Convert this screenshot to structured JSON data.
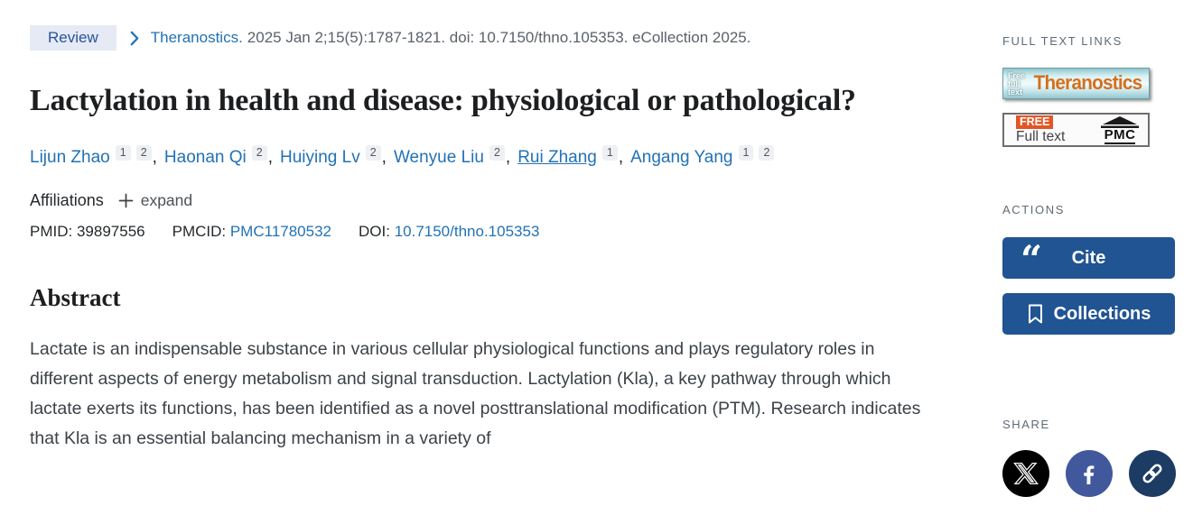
{
  "badge": {
    "label": "Review"
  },
  "citation": {
    "journal": "Theranostics.",
    "rest": "2025 Jan 2;15(5):1787-1821. doi: 10.7150/thno.105353. eCollection 2025."
  },
  "title": "Lactylation in health and disease: physiological or pathological?",
  "authors": [
    {
      "name": "Lijun Zhao",
      "sups": [
        "1",
        "2"
      ],
      "underline": false
    },
    {
      "name": "Haonan Qi",
      "sups": [
        "2"
      ],
      "underline": false
    },
    {
      "name": "Huiying Lv",
      "sups": [
        "2"
      ],
      "underline": false
    },
    {
      "name": "Wenyue Liu",
      "sups": [
        "2"
      ],
      "underline": false
    },
    {
      "name": "Rui Zhang",
      "sups": [
        "1"
      ],
      "underline": true
    },
    {
      "name": "Angang Yang",
      "sups": [
        "1",
        "2"
      ],
      "underline": false
    }
  ],
  "affiliations": {
    "label": "Affiliations",
    "expand_label": "expand"
  },
  "ids": {
    "pmid_label": "PMID:",
    "pmid_value": "39897556",
    "pmcid_label": "PMCID:",
    "pmcid_value": "PMC11780532",
    "doi_label": "DOI:",
    "doi_value": "10.7150/thno.105353"
  },
  "abstract": {
    "heading": "Abstract",
    "paragraph": "Lactate is an indispensable substance in various cellular physiological functions and plays regulatory roles in different aspects of energy metabolism and signal transduction. Lactylation (Kla), a key pathway through which lactate exerts its functions, has been identified as a novel posttranslational modification (PTM). Research indicates that Kla is an essential balancing mechanism in a variety of"
  },
  "sidebar": {
    "full_text_links": {
      "heading": "FULL TEXT LINKS",
      "theranostics": {
        "free_line1": "Free",
        "free_line2": "full",
        "free_line3": "text",
        "name": "Theranostics"
      },
      "pmc": {
        "free": "FREE",
        "full_text": "Full text",
        "label": "PMC"
      }
    },
    "actions": {
      "heading": "ACTIONS",
      "cite_label": "Cite",
      "collections_label": "Collections"
    },
    "share": {
      "heading": "SHARE",
      "icons": [
        "x",
        "facebook",
        "copy-link"
      ]
    }
  },
  "colors": {
    "link_blue": "#2272b5",
    "badge_bg": "#e5eaf4",
    "badge_text": "#2a529e",
    "action_button_blue": "#205493",
    "x_black": "#000000",
    "facebook_blue": "#41599c",
    "link_circle_navy": "#1c3c63",
    "theranostics_orange": "#d4701d",
    "pmc_free_orange": "#e25626"
  }
}
